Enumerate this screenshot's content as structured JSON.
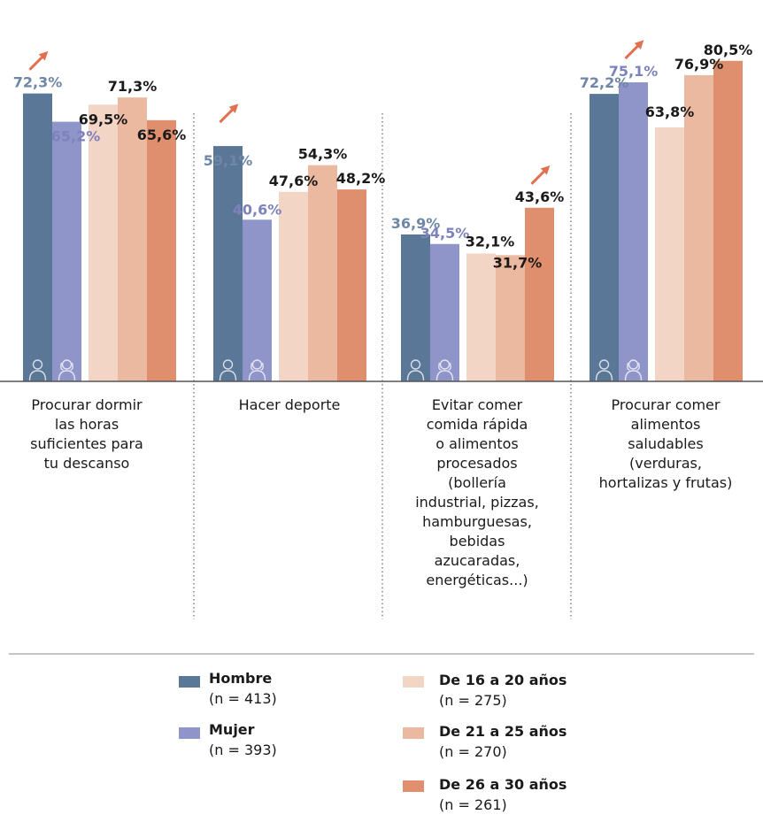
{
  "chart_data": {
    "type": "bar",
    "title": "",
    "xlabel": "",
    "ylabel": "",
    "ylim": [
      0,
      83
    ],
    "grid": false,
    "legend_position": "bottom",
    "categories": [
      [
        "Procurar dormir",
        "las horas",
        "suficientes para",
        "tu descanso"
      ],
      [
        "Hacer deporte"
      ],
      [
        "Evitar comer",
        "comida rápida",
        "o alimentos",
        "procesados",
        "(bollería",
        "industrial, pizzas,",
        "hamburguesas,",
        "bebidas",
        "azucaradas,",
        "energéticas...)"
      ],
      [
        "Procurar comer",
        "alimentos",
        "saludables",
        "(verduras,",
        "hortalizas y frutas)"
      ]
    ],
    "series": [
      {
        "name": "Hombre",
        "n_label": "(n = 413)",
        "color": "#5b7797",
        "label_color": "#6f87a6",
        "icon": "male-person-icon",
        "values": [
          72.3,
          59.1,
          36.9,
          72.2
        ],
        "labels": [
          "72,3%",
          "59,1%",
          "36,9%",
          "72,2%"
        ]
      },
      {
        "name": "Mujer",
        "n_label": "(n = 393)",
        "color": "#8f95c9",
        "label_color": "#7d82bb",
        "icon": "female-person-icon",
        "values": [
          65.2,
          40.6,
          34.5,
          75.1
        ],
        "labels": [
          "65,2%",
          "40,6%",
          "34,5%",
          "75,1%"
        ]
      },
      {
        "name": "De 16 a 20 años",
        "n_label": "(n = 275)",
        "color": "#f3d5c6",
        "label_color": "#1a1a1a",
        "values": [
          69.5,
          47.6,
          32.1,
          63.8
        ],
        "labels": [
          "69,5%",
          "47,6%",
          "32,1%",
          "63,8%"
        ]
      },
      {
        "name": "De 21 a 25 años",
        "n_label": "(n = 270)",
        "color": "#ebb8a0",
        "label_color": "#1a1a1a",
        "values": [
          71.3,
          54.3,
          31.7,
          76.9
        ],
        "labels": [
          "71,3%",
          "54,3%",
          "31,7%",
          "76,9%"
        ]
      },
      {
        "name": "De 26 a 30 años",
        "n_label": "(n = 261)",
        "color": "#df8f6d",
        "label_color": "#1a1a1a",
        "values": [
          65.6,
          48.2,
          43.6,
          80.5
        ],
        "labels": [
          "65,6%",
          "48,2%",
          "43,6%",
          "80,5%"
        ]
      }
    ],
    "highlight_arrows": [
      {
        "category_index": 0,
        "series": "Hombre"
      },
      {
        "category_index": 1,
        "series": "Hombre"
      },
      {
        "category_index": 2,
        "series": "De 26 a 30 años"
      },
      {
        "category_index": 3,
        "series": "Mujer"
      }
    ],
    "arrow_color": "#e07050"
  }
}
